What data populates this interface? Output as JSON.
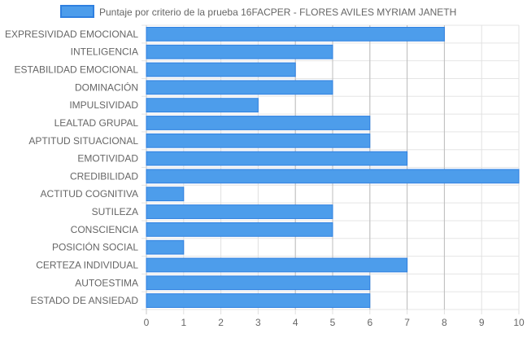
{
  "chart_data": {
    "type": "bar",
    "orientation": "horizontal",
    "categories": [
      "EXPRESIVIDAD EMOCIONAL",
      "INTELIGENCIA",
      "ESTABILIDAD EMOCIONAL",
      "DOMINACIÓN",
      "IMPULSIVIDAD",
      "LEALTAD GRUPAL",
      "APTITUD SITUACIONAL",
      "EMOTIVIDAD",
      "CREDIBILIDAD",
      "ACTITUD COGNITIVA",
      "SUTILEZA",
      "CONSCIENCIA",
      "POSICIÓN SOCIAL",
      "CERTEZA INDIVIDUAL",
      "AUTOESTIMA",
      "ESTADO DE ANSIEDAD"
    ],
    "series": [
      {
        "name": "Puntaje por criterio de la prueba 16FACPER - FLORES AVILES MYRIAM JANETH",
        "values": [
          8,
          5,
          4,
          5,
          3,
          6,
          6,
          7,
          10,
          1,
          5,
          5,
          1,
          7,
          6,
          6
        ],
        "color": "#4d9deb",
        "border_color": "#2f80e0"
      }
    ],
    "xlim": [
      0,
      10
    ],
    "x_ticks": [
      "0",
      "1",
      "2",
      "3",
      "4",
      "5",
      "6",
      "7",
      "8",
      "9",
      "10"
    ],
    "grid": true,
    "legend_position": "top",
    "title": "",
    "xlabel": "",
    "ylabel": ""
  }
}
